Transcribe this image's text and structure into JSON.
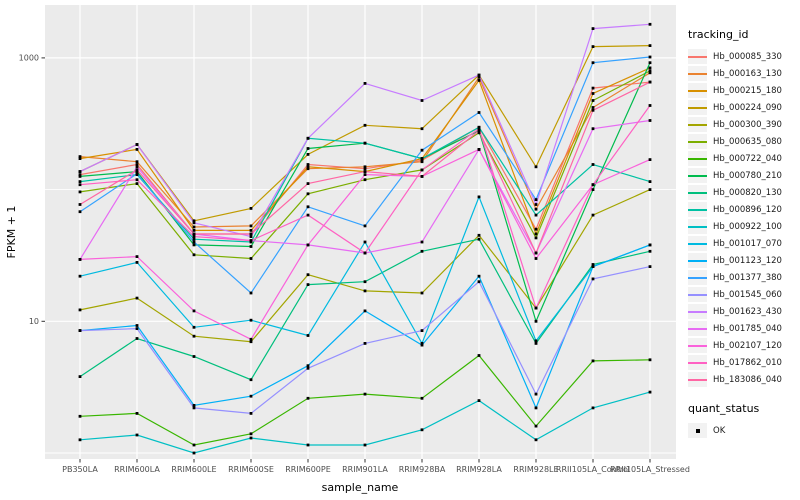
{
  "figure": {
    "background": "#ffffff",
    "panel_background": "#ebebeb",
    "grid_color": "#ffffff",
    "tick_color": "#333333",
    "tick_label_color": "#4d4d4d",
    "title_color": "#000000",
    "point_color": "#000000"
  },
  "axes": {
    "x_title": "sample_name",
    "y_title": "FPKM + 1",
    "y_tick_labels": [
      {
        "label": "1000",
        "value": 1000
      },
      {
        "label": "10",
        "value": 10
      }
    ]
  },
  "legend": {
    "tracking_title": "tracking_id",
    "quant_title": "quant_status",
    "quant_items": [
      {
        "label": "OK"
      }
    ]
  },
  "chart_data": {
    "type": "line",
    "x_label": "sample_name",
    "y_label": "FPKM + 1",
    "y_scale": "log10",
    "y_major_breaks": [
      1000,
      10
    ],
    "y_minor_breaks": [
      100,
      1
    ],
    "ylim": [
      1,
      2400
    ],
    "grid": true,
    "legend_position": "right",
    "point_marker": "small black square (quant_status OK)",
    "categories": [
      "PB350LA",
      "RRIM600LA",
      "RRIM600LE",
      "RRIM600SE",
      "RRIM600PE",
      "RRIM901LA",
      "RRIM928BA",
      "RRIM928LA",
      "RRIM928LE",
      "RRII105LA_Control",
      "RRII105LA_Stressed"
    ],
    "series": [
      {
        "name": "Hb_000085_330",
        "color": "#F8766D",
        "values": [
          130,
          155,
          46,
          46,
          155,
          144,
          167,
          297,
          50,
          590,
          655
        ]
      },
      {
        "name": "Hb_000163_130",
        "color": "#EA8331",
        "values": [
          178,
          163,
          52,
          53,
          144,
          149,
          163,
          712,
          71,
          420,
          770
        ]
      },
      {
        "name": "Hb_000215_180",
        "color": "#D89000",
        "values": [
          172,
          202,
          49,
          49,
          149,
          137,
          172,
          675,
          46,
          537,
          840
        ]
      },
      {
        "name": "Hb_000224_090",
        "color": "#C09B00",
        "values": [
          137,
          220,
          58,
          72,
          185,
          308,
          290,
          740,
          149,
          1219,
          1240
        ]
      },
      {
        "name": "Hb_000300_390",
        "color": "#A3A500",
        "values": [
          12.2,
          15,
          7.7,
          7.0,
          22.6,
          17,
          16.4,
          45,
          12.6,
          64,
          100
        ]
      },
      {
        "name": "Hb_000635_080",
        "color": "#7CAE00",
        "values": [
          96,
          111,
          32,
          30,
          93,
          119,
          141,
          270,
          43,
          475,
          797
        ]
      },
      {
        "name": "Hb_000722_040",
        "color": "#39B600",
        "values": [
          1.9,
          2.0,
          1.15,
          1.4,
          2.6,
          2.8,
          2.6,
          5.5,
          1.6,
          5.0,
          5.1
        ]
      },
      {
        "name": "Hb_000780_210",
        "color": "#00BB4E",
        "values": [
          126,
          137,
          38,
          37,
          205,
          225,
          172,
          280,
          10,
          100,
          920
        ]
      },
      {
        "name": "Hb_000820_130",
        "color": "#00BF7D",
        "values": [
          3.8,
          7.4,
          5.4,
          3.6,
          19,
          20,
          34,
          42,
          6.8,
          27,
          34
        ]
      },
      {
        "name": "Hb_000896_120",
        "color": "#00C1A3",
        "values": [
          115,
          130,
          42,
          40,
          245,
          225,
          172,
          297,
          64,
          155,
          115
        ]
      },
      {
        "name": "Hb_000922_100",
        "color": "#00BFC4",
        "values": [
          1.26,
          1.37,
          1.0,
          1.3,
          1.15,
          1.15,
          1.5,
          2.5,
          1.26,
          2.2,
          2.9
        ]
      },
      {
        "name": "Hb_001017_070",
        "color": "#00BAE0",
        "values": [
          22,
          28,
          9.0,
          10.2,
          7.8,
          40,
          6.8,
          88,
          7.1,
          26,
          38
        ]
      },
      {
        "name": "Hb_001123_120",
        "color": "#00B0F6",
        "values": [
          8.5,
          9.3,
          2.3,
          2.7,
          4.6,
          12,
          6.6,
          22,
          2.2,
          26,
          38
        ]
      },
      {
        "name": "Hb_001377_380",
        "color": "#35A2FF",
        "values": [
          68,
          132,
          40,
          16.4,
          74,
          53,
          199,
          385,
          84,
          920,
          1015
        ]
      },
      {
        "name": "Hb_001545_060",
        "color": "#9590FF",
        "values": [
          8.5,
          8.8,
          2.2,
          2.0,
          4.4,
          6.8,
          8.5,
          20,
          2.8,
          21,
          26
        ]
      },
      {
        "name": "Hb_001623_430",
        "color": "#C77CFF",
        "values": [
          137,
          220,
          56,
          44,
          245,
          640,
          475,
          740,
          77,
          1670,
          1800
        ]
      },
      {
        "name": "Hb_001785_040",
        "color": "#E76BF3",
        "values": [
          29.5,
          149,
          46,
          41,
          38,
          33,
          40,
          202,
          33,
          290,
          335
        ]
      },
      {
        "name": "Hb_002107_120",
        "color": "#FA62DB",
        "values": [
          29.5,
          31,
          12,
          7.3,
          38,
          130,
          126,
          202,
          30,
          109,
          169
        ]
      },
      {
        "name": "Hb_017862_010",
        "color": "#FF61C3",
        "values": [
          109,
          119,
          44,
          41,
          64,
          33,
          141,
          290,
          12.6,
          109,
          435
        ]
      },
      {
        "name": "Hb_183086_040",
        "color": "#FF67A4",
        "values": [
          77,
          141,
          46,
          46,
          111,
          137,
          126,
          280,
          33,
          400,
          655
        ]
      }
    ]
  }
}
